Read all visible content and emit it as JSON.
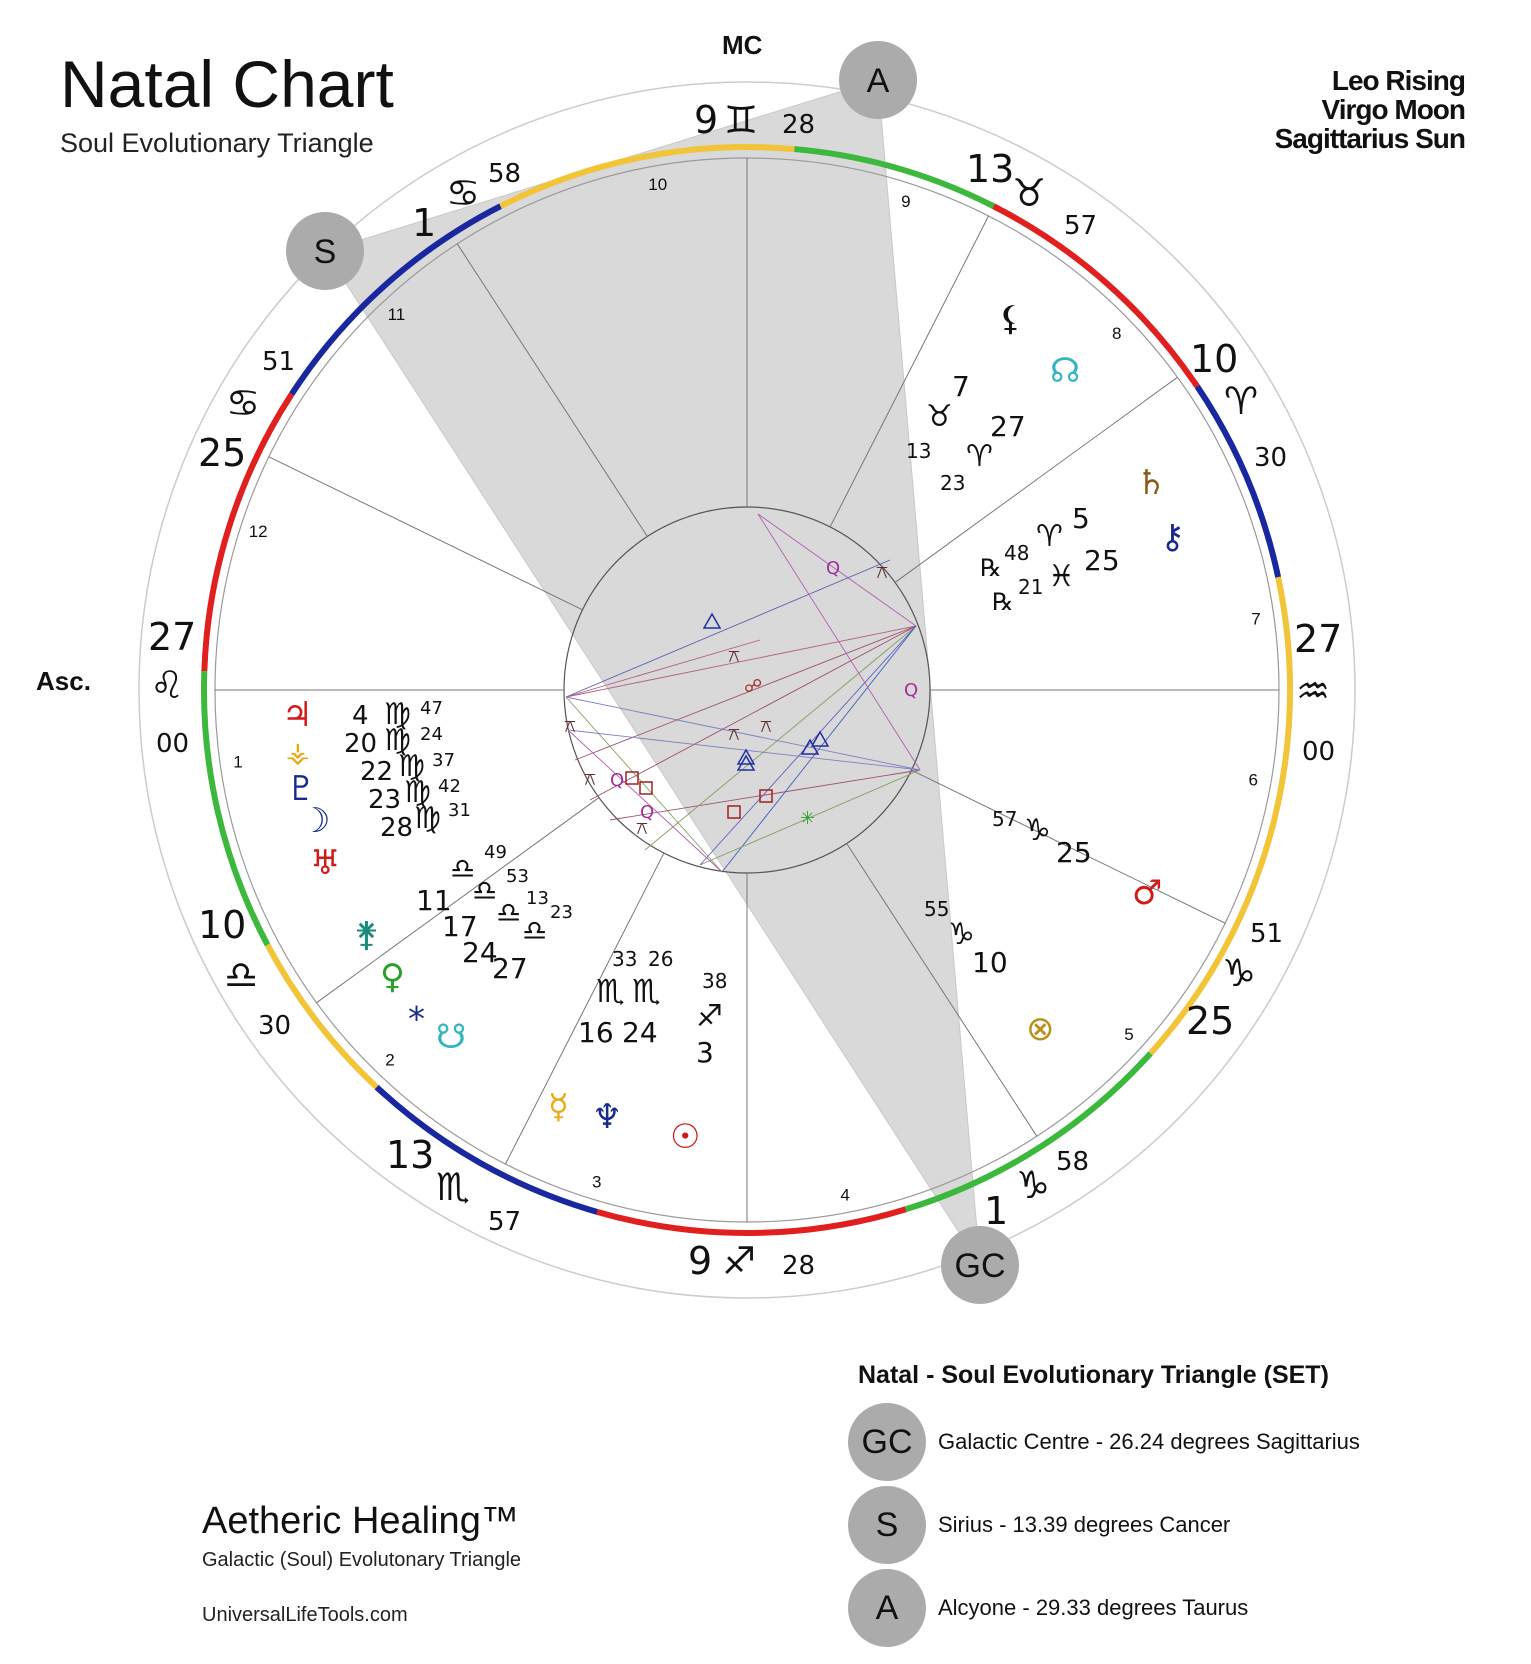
{
  "header": {
    "title": "Natal Chart",
    "subtitle": "Soul Evolutionary Triangle",
    "traits": [
      "Leo Rising",
      "Virgo Moon",
      "Sagittarius Sun"
    ]
  },
  "wheel": {
    "mc_label": "MC",
    "asc_label": "Asc.",
    "triangle_points": [
      {
        "id": "A",
        "label": "A"
      },
      {
        "id": "S",
        "label": "S"
      },
      {
        "id": "GC",
        "label": "GC"
      }
    ],
    "house_numbers": [
      "1",
      "2",
      "3",
      "4",
      "5",
      "6",
      "7",
      "8",
      "9",
      "10",
      "11",
      "12"
    ],
    "cusps": [
      {
        "house": "MC",
        "deg": "9",
        "sign": "♊",
        "min": "28"
      },
      {
        "house": "11",
        "deg": "1",
        "sign": "♋",
        "min": "58"
      },
      {
        "house": "12",
        "deg": "25",
        "sign": "♋",
        "min": "51"
      },
      {
        "house": "Asc",
        "deg": "27",
        "sign": "♌",
        "min": "00"
      },
      {
        "house": "2",
        "deg": "10",
        "sign": "♎",
        "min": "30"
      },
      {
        "house": "3",
        "deg": "13",
        "sign": "♏",
        "min": "57"
      },
      {
        "house": "IC",
        "deg": "9",
        "sign": "♐",
        "min": "28"
      },
      {
        "house": "5",
        "deg": "1",
        "sign": "♑",
        "min": "58"
      },
      {
        "house": "6",
        "deg": "25",
        "sign": "♑",
        "min": "51"
      },
      {
        "house": "Desc",
        "deg": "27",
        "sign": "♒",
        "min": "00"
      },
      {
        "house": "8",
        "deg": "10",
        "sign": "♈",
        "min": "30"
      },
      {
        "house": "9",
        "deg": "13",
        "sign": "♉",
        "min": "57"
      }
    ],
    "planet_glyphs": [
      {
        "name": "jupiter",
        "glyph": "♃",
        "color": "#d11a1a"
      },
      {
        "name": "vesta",
        "glyph": "⚶",
        "color": "#e8a915"
      },
      {
        "name": "pluto",
        "glyph": "♇",
        "color": "#1a2a8a"
      },
      {
        "name": "moon",
        "glyph": "☽",
        "color": "#1a2a8a"
      },
      {
        "name": "uranus",
        "glyph": "♅",
        "color": "#d11a1a"
      },
      {
        "name": "juno",
        "glyph": "⚵",
        "color": "#1a8a7a"
      },
      {
        "name": "venus",
        "glyph": "♀",
        "color": "#2aa02a"
      },
      {
        "name": "pallas",
        "glyph": "⁎",
        "color": "#1a2a8a"
      },
      {
        "name": "south-node",
        "glyph": "☋",
        "color": "#35b5c0"
      },
      {
        "name": "mercury",
        "glyph": "☿",
        "color": "#e8a915"
      },
      {
        "name": "neptune",
        "glyph": "♆",
        "color": "#1a2a8a"
      },
      {
        "name": "sun",
        "glyph": "☉",
        "color": "#d11a1a"
      },
      {
        "name": "mars",
        "glyph": "♂",
        "color": "#d11a1a"
      },
      {
        "name": "part-of-fortune",
        "glyph": "⊗",
        "color": "#b8901a"
      },
      {
        "name": "chiron",
        "glyph": "⚷",
        "color": "#1a2a8a"
      },
      {
        "name": "saturn",
        "glyph": "♄",
        "color": "#8a5a1a"
      },
      {
        "name": "north-node",
        "glyph": "☊",
        "color": "#35b5c0"
      },
      {
        "name": "lilith",
        "glyph": "⚸",
        "color": "#111111"
      }
    ],
    "positions": [
      {
        "group": "virgo",
        "items": [
          {
            "deg": "4",
            "sign": "♍",
            "min": "47"
          },
          {
            "deg": "20",
            "sign": "♍",
            "min": "24"
          },
          {
            "deg": "22",
            "sign": "♍",
            "min": "37"
          },
          {
            "deg": "23",
            "sign": "♍",
            "min": "42"
          },
          {
            "deg": "28",
            "sign": "♍",
            "min": "31"
          }
        ]
      },
      {
        "group": "libra",
        "items": [
          {
            "deg": "11",
            "sign": "♎",
            "min": "49"
          },
          {
            "deg": "17",
            "sign": "♎",
            "min": "53"
          },
          {
            "deg": "24",
            "sign": "♎",
            "min": "13"
          },
          {
            "deg": "27",
            "sign": "♎",
            "min": "23"
          }
        ]
      },
      {
        "group": "scorpio",
        "items": [
          {
            "deg": "16",
            "sign": "♏",
            "min": "33"
          },
          {
            "deg": "24",
            "sign": "♏",
            "min": "26"
          }
        ]
      },
      {
        "group": "sagittarius",
        "items": [
          {
            "deg": "3",
            "sign": "♐",
            "min": "38"
          }
        ]
      },
      {
        "group": "capricorn",
        "items": [
          {
            "deg": "25",
            "sign": "♑",
            "min": "57"
          },
          {
            "deg": "10",
            "sign": "♑",
            "min": "55"
          }
        ]
      },
      {
        "group": "pisces",
        "items": [
          {
            "deg": "25",
            "sign": "♓",
            "min": "21",
            "retro": "℞"
          }
        ]
      },
      {
        "group": "aries",
        "items": [
          {
            "deg": "5",
            "sign": "♈",
            "min": "48",
            "retro": "℞"
          },
          {
            "deg": "27",
            "sign": "♈",
            "min": "23"
          }
        ]
      },
      {
        "group": "taurus",
        "items": [
          {
            "deg": "7",
            "sign": "♉",
            "min": "13"
          }
        ]
      }
    ],
    "aspect_letters": [
      "Q",
      "Q",
      "Q",
      "Q"
    ],
    "colors": {
      "fire": "#e01f1f",
      "earth": "#3cb83c",
      "air": "#f2c438",
      "water": "#1a28a0",
      "triangle": "#d9d9d9",
      "badge": "#ababab"
    }
  },
  "legend": {
    "title": "Natal - Soul Evolutionary Triangle (SET)",
    "rows": [
      {
        "badge": "GC",
        "text": "Galactic Centre - 26.24 degrees Sagittarius"
      },
      {
        "badge": "S",
        "text": "Sirius - 13.39 degrees Cancer"
      },
      {
        "badge": "A",
        "text": "Alcyone - 29.33 degrees Taurus"
      }
    ]
  },
  "branding": {
    "name": "Aetheric Healing™",
    "tagline": "Galactic (Soul) Evolutonary Triangle",
    "url": "UniversalLifeTools.com"
  }
}
